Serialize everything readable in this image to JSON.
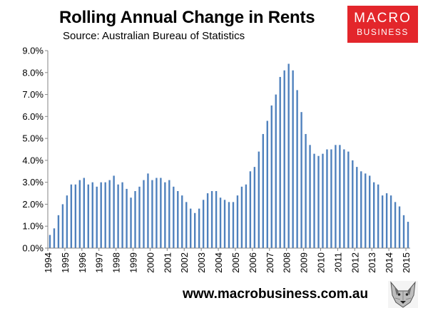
{
  "header": {
    "title": "Rolling Annual Change in Rents",
    "subtitle": "Source: Australian Bureau of Statistics"
  },
  "logo": {
    "line1": "MACRO",
    "line2": "BUSINESS",
    "color": "#e3262b"
  },
  "footer": {
    "website": "www.macrobusiness.com.au",
    "mascot_icon": "wolf-head-icon"
  },
  "colors": {
    "bar": "#4f81bd",
    "axis": "#868686",
    "gridline": "#d9d9d9"
  },
  "chart_data": {
    "type": "bar",
    "title": "Rolling Annual Change in Rents",
    "subtitle": "Source: Australian Bureau of Statistics",
    "xlabel": "",
    "ylabel": "",
    "ylim": [
      0,
      0.09
    ],
    "grid": false,
    "legend": "none",
    "y_ticks": [
      "0.0%",
      "1.0%",
      "2.0%",
      "3.0%",
      "4.0%",
      "5.0%",
      "6.0%",
      "7.0%",
      "8.0%",
      "9.0%"
    ],
    "x_ticks": [
      "1994",
      "1995",
      "1996",
      "1997",
      "1998",
      "1999",
      "2000",
      "2001",
      "2002",
      "2003",
      "2004",
      "2005",
      "2006",
      "2007",
      "2008",
      "2009",
      "2010",
      "2011",
      "2012",
      "2013",
      "2014",
      "2015"
    ],
    "values": [
      0.006,
      0.009,
      0.015,
      0.02,
      0.024,
      0.029,
      0.029,
      0.031,
      0.032,
      0.029,
      0.03,
      0.028,
      0.03,
      0.03,
      0.031,
      0.033,
      0.029,
      0.03,
      0.027,
      0.023,
      0.026,
      0.028,
      0.031,
      0.034,
      0.031,
      0.032,
      0.032,
      0.03,
      0.031,
      0.028,
      0.026,
      0.024,
      0.021,
      0.018,
      0.016,
      0.018,
      0.022,
      0.025,
      0.026,
      0.026,
      0.023,
      0.022,
      0.021,
      0.021,
      0.024,
      0.028,
      0.029,
      0.035,
      0.037,
      0.044,
      0.052,
      0.058,
      0.065,
      0.07,
      0.078,
      0.081,
      0.084,
      0.081,
      0.072,
      0.062,
      0.052,
      0.047,
      0.043,
      0.042,
      0.043,
      0.045,
      0.045,
      0.047,
      0.047,
      0.045,
      0.044,
      0.04,
      0.037,
      0.035,
      0.034,
      0.033,
      0.03,
      0.029,
      0.024,
      0.025,
      0.024,
      0.021,
      0.019,
      0.015,
      0.012
    ]
  }
}
